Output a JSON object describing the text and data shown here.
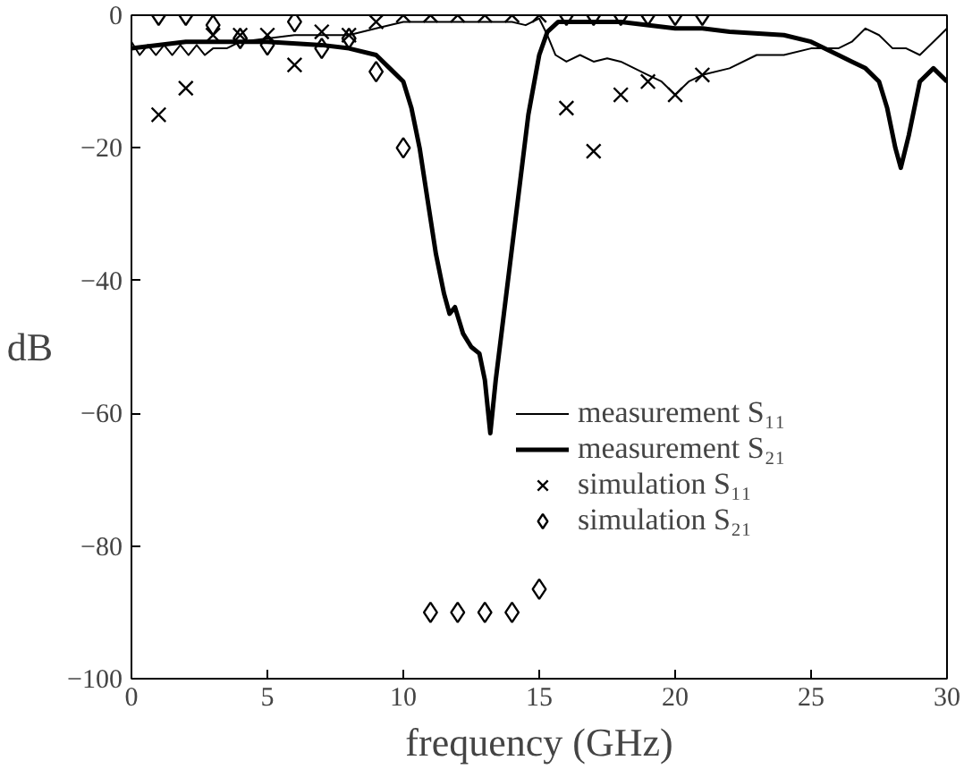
{
  "chart_data": {
    "type": "line",
    "xlabel": "frequency (GHz)",
    "ylabel": "dB",
    "xlim": [
      0,
      30
    ],
    "ylim": [
      -100,
      0
    ],
    "xticks": [
      0,
      5,
      10,
      15,
      20,
      25,
      30
    ],
    "yticks": [
      -100,
      -80,
      -60,
      -40,
      -20,
      0
    ],
    "grid": false,
    "legend": "right",
    "series": [
      {
        "name": "measurement S₁₁",
        "color": "#000000",
        "line_style": "solid",
        "x": [
          0,
          0.3,
          0.6,
          0.9,
          1.2,
          1.5,
          1.8,
          2.1,
          2.4,
          2.7,
          3,
          3.5,
          4,
          5,
          6,
          7,
          8,
          9,
          10,
          11,
          12,
          13,
          14,
          14.5,
          15,
          15.3,
          15.6,
          16,
          16.5,
          17,
          17.5,
          18,
          19,
          19.5,
          20,
          20.5,
          21,
          22,
          23,
          24,
          25,
          26,
          26.5,
          27,
          27.5,
          28,
          28.5,
          29,
          29.5,
          30
        ],
        "values": [
          -4,
          -6,
          -4.5,
          -6,
          -4.5,
          -6,
          -4.5,
          -6,
          -4.5,
          -6,
          -5,
          -5,
          -4,
          -3.5,
          -3,
          -3,
          -3,
          -2,
          -1,
          -1,
          -1,
          -1,
          -1,
          -1.5,
          -0.5,
          -3,
          -6,
          -7,
          -6,
          -7,
          -6.5,
          -7,
          -9,
          -10,
          -12,
          -10,
          -9,
          -8,
          -6,
          -6,
          -5,
          -5,
          -4,
          -2,
          -3,
          -5,
          -5,
          -6,
          -4,
          -2
        ]
      },
      {
        "name": "measurement S₂₁",
        "color": "#000000",
        "line_style": "solid",
        "x": [
          0,
          2,
          5,
          7,
          8,
          9,
          9.5,
          10,
          10.3,
          10.6,
          10.9,
          11.2,
          11.5,
          11.7,
          11.9,
          12.2,
          12.5,
          12.8,
          13.0,
          13.2,
          13.4,
          13.7,
          14,
          14.3,
          14.6,
          15,
          15.3,
          15.7,
          16,
          18,
          20,
          21,
          22,
          24,
          25,
          26,
          26.5,
          27,
          27.5,
          27.8,
          28.1,
          28.3,
          28.6,
          29,
          29.5,
          30
        ],
        "values": [
          -5,
          -4,
          -4,
          -4.5,
          -5,
          -6,
          -8,
          -10,
          -14,
          -20,
          -28,
          -36,
          -42,
          -45,
          -44,
          -48,
          -50,
          -51,
          -55,
          -63,
          -55,
          -45,
          -35,
          -25,
          -15,
          -6,
          -2.5,
          -1,
          -1,
          -1,
          -2,
          -2,
          -2.5,
          -3,
          -4,
          -6,
          -7,
          -8,
          -10,
          -14,
          -20,
          -23,
          -18,
          -10,
          -8,
          -10
        ]
      },
      {
        "name": "simulation S₁₁",
        "color": "#000000",
        "type": "scatter",
        "marker": "cross",
        "x": [
          1,
          2,
          3,
          4,
          5,
          6,
          7,
          8,
          9,
          10,
          11,
          12,
          13,
          14,
          15,
          16,
          17,
          18,
          19,
          20,
          21
        ],
        "values": [
          -15,
          -11,
          -3,
          -3,
          -3,
          -7.5,
          -2.5,
          -3,
          -1,
          0,
          0,
          0,
          0,
          0,
          0,
          -14,
          -20.5,
          -12,
          -10,
          -12,
          -9
        ]
      },
      {
        "name": "simulation S₂₁",
        "color": "#000000",
        "type": "scatter",
        "marker": "diamond",
        "x": [
          1,
          2,
          3,
          4,
          5,
          6,
          7,
          8,
          9,
          10,
          11,
          12,
          13,
          14,
          15,
          16,
          17,
          18,
          19,
          20,
          21
        ],
        "values": [
          0,
          0,
          -1.5,
          -3.5,
          -4.5,
          -1,
          -5,
          -3.5,
          -8.5,
          -20,
          -90,
          -90,
          -90,
          -90,
          -86.5,
          0,
          0,
          0,
          0,
          0,
          0
        ]
      }
    ]
  }
}
